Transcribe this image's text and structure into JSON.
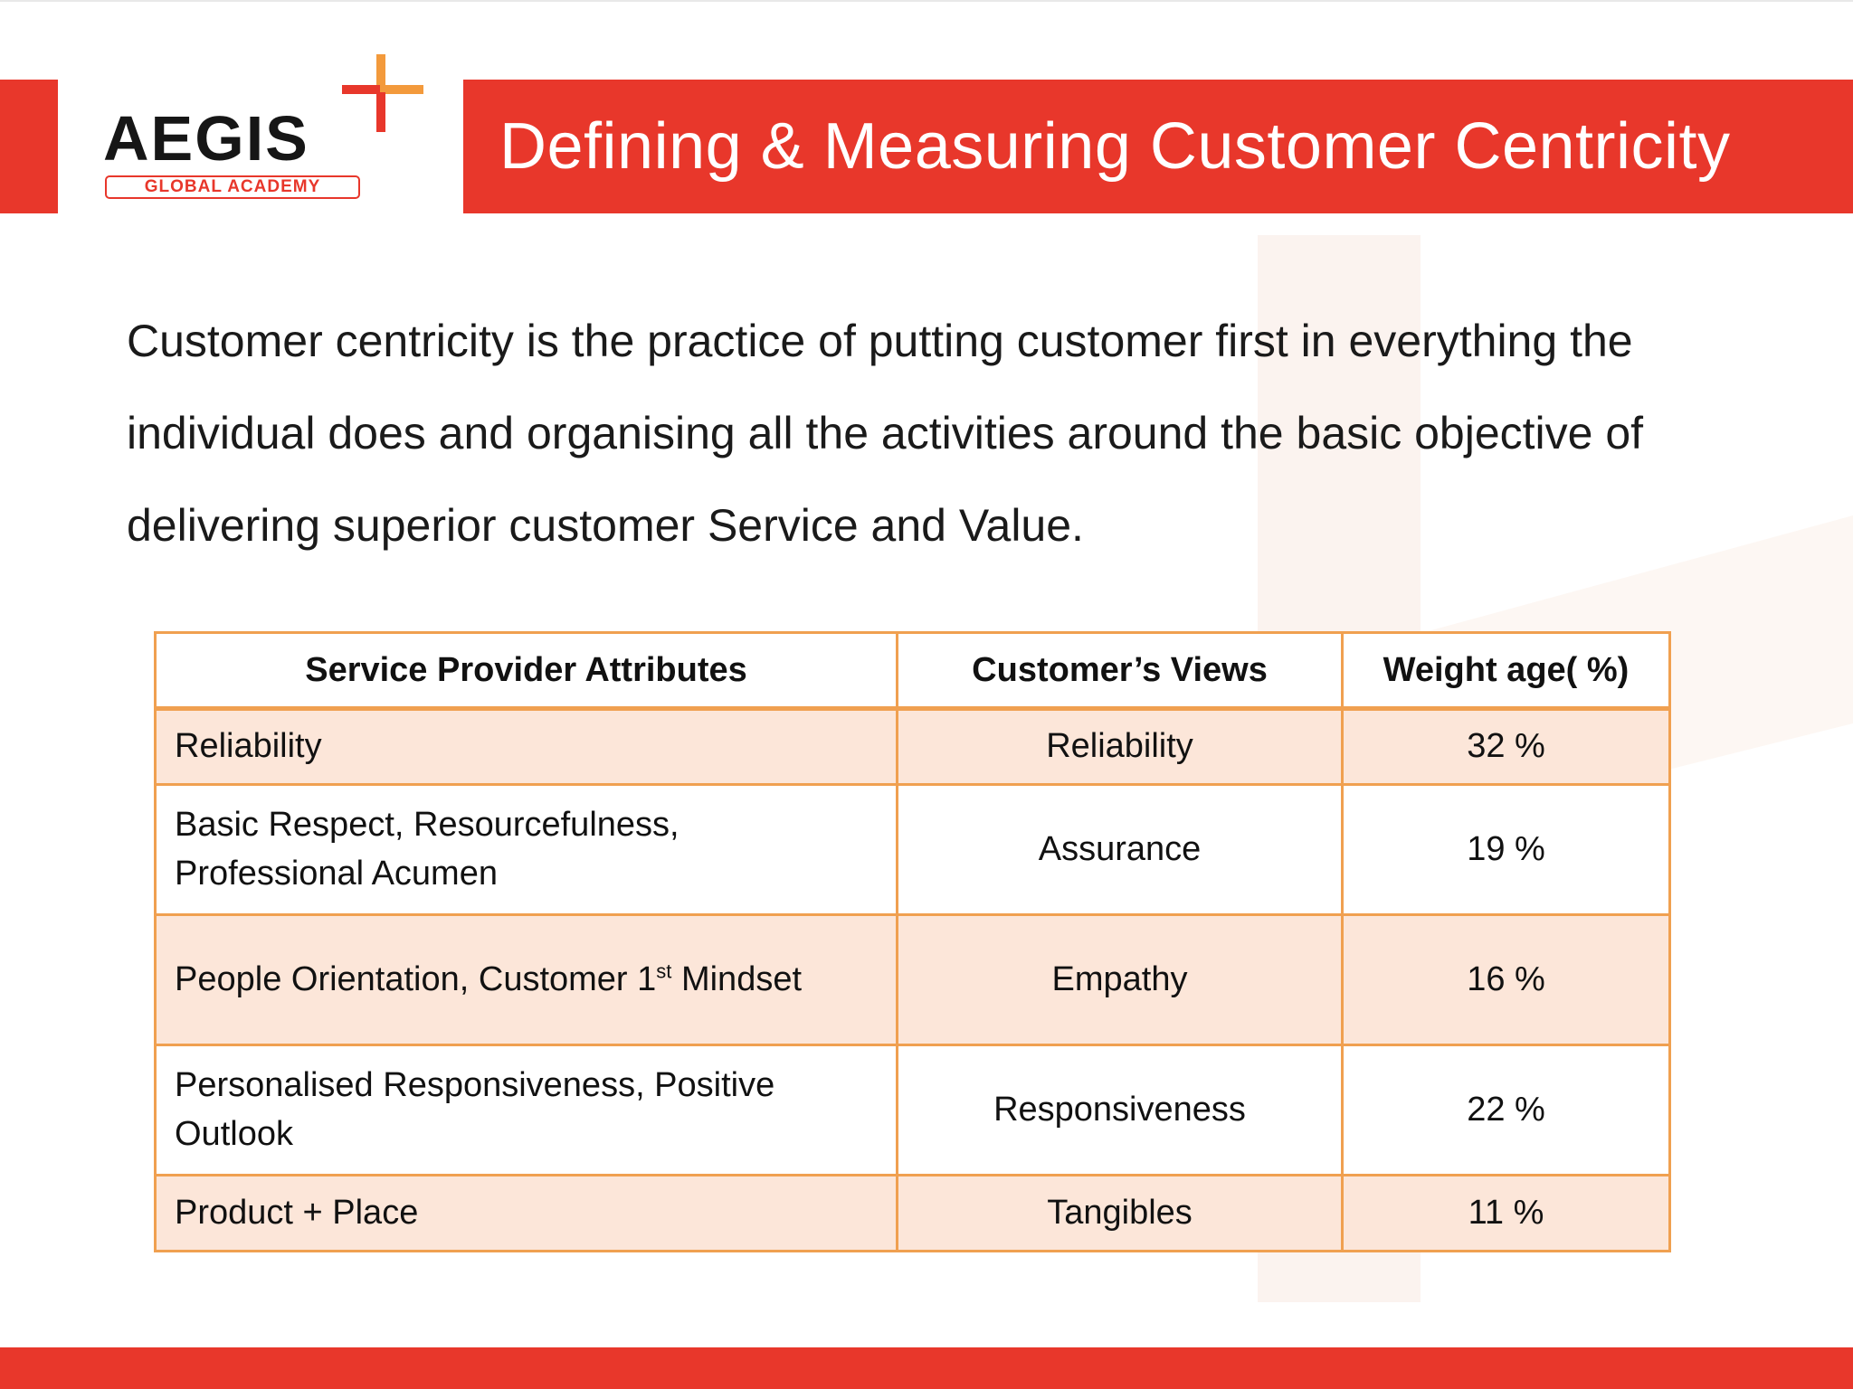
{
  "logo": {
    "wordmark": "AEGIS",
    "tagline": "GLOBAL ACADEMY"
  },
  "header": {
    "title": "Defining & Measuring Customer Centricity"
  },
  "intro": {
    "lines": [
      "Customer centricity is the practice of putting customer first in everything the",
      "individual does and organising all the activities around the basic objective of",
      "delivering superior customer Service and Value."
    ]
  },
  "table": {
    "headers": [
      "Service Provider Attributes",
      "Customer’s Views",
      "Weight age( %)"
    ],
    "rows": [
      {
        "attribute": [
          "Reliability"
        ],
        "view": "Reliability",
        "weight": "32 %"
      },
      {
        "attribute": [
          "Basic Respect, Resourcefulness,",
          "Professional Acumen"
        ],
        "view": "Assurance",
        "weight": "19 %"
      },
      {
        "attribute_pre": "People Orientation, Customer 1",
        "attribute_sup": "st",
        "attribute_post": " Mindset",
        "view": "Empathy",
        "weight": "16 %"
      },
      {
        "attribute": [
          "Personalised Responsiveness, Positive",
          "Outlook"
        ],
        "view": "Responsiveness",
        "weight": "22 %"
      },
      {
        "attribute": [
          "Product + Place"
        ],
        "view": "Tangibles",
        "weight": "11 %"
      }
    ]
  },
  "colors": {
    "brand_red": "#e8372b",
    "table_border": "#f0a050",
    "band_fill": "#fce6d9",
    "logo_orange": "#f39a3c"
  },
  "icons": {
    "logo_mark": "plus-cross-icon"
  }
}
